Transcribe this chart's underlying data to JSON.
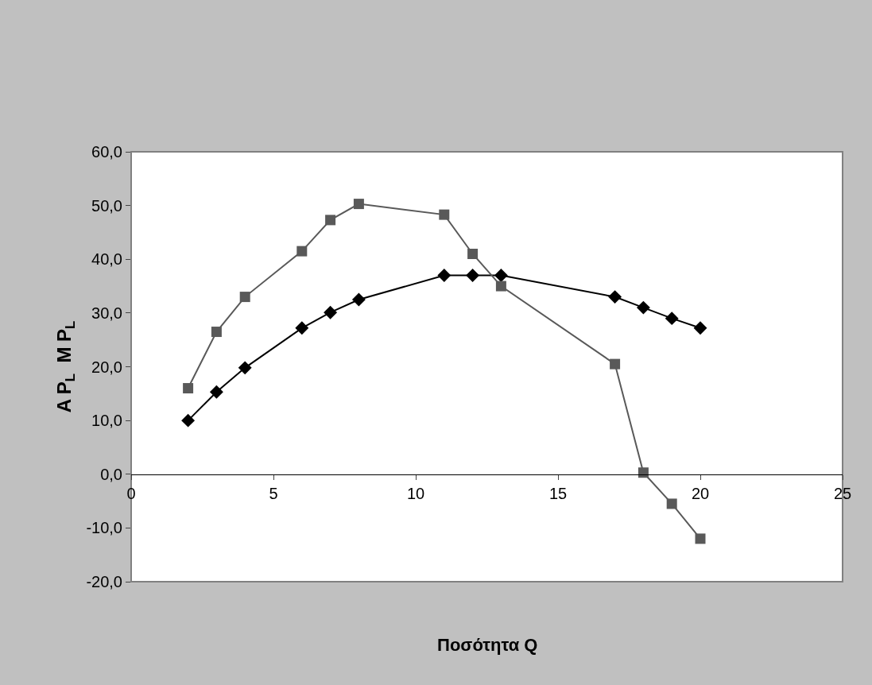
{
  "chart_data": {
    "type": "line",
    "xlabel": "Ποσότητα Q",
    "ylabel": "A P$_{L}$  M P$_{L}$",
    "xlim": [
      0,
      25
    ],
    "xticks": [
      0,
      5,
      10,
      15,
      20,
      25
    ],
    "ylim": [
      -20,
      60
    ],
    "yticks": [
      {
        "value": -20,
        "label": "-20,0"
      },
      {
        "value": -10,
        "label": "-10,0"
      },
      {
        "value": 0,
        "label": "0,0"
      },
      {
        "value": 10,
        "label": "10,0"
      },
      {
        "value": 20,
        "label": "20,0"
      },
      {
        "value": 30,
        "label": "30,0"
      },
      {
        "value": 40,
        "label": "40,0"
      },
      {
        "value": 50,
        "label": "50,0"
      },
      {
        "value": 60,
        "label": "60,0"
      }
    ],
    "grid": false,
    "series": [
      {
        "color": "#000000",
        "marker": "diamond",
        "x": [
          2,
          3,
          4,
          6,
          7,
          8,
          11,
          12,
          13,
          17,
          18,
          19,
          20
        ],
        "values": [
          10,
          15.3,
          19.8,
          27.2,
          30.1,
          32.5,
          37,
          37,
          37,
          33,
          31,
          29,
          27.2
        ]
      },
      {
        "color": "#595959",
        "marker": "square",
        "x": [
          2,
          3,
          4,
          6,
          7,
          8,
          11,
          12,
          13,
          17,
          18,
          19,
          20
        ],
        "values": [
          16,
          26.5,
          33,
          41.5,
          47.3,
          50.3,
          48.3,
          41,
          35,
          20.5,
          0.3,
          -5.5,
          -12
        ]
      }
    ]
  }
}
